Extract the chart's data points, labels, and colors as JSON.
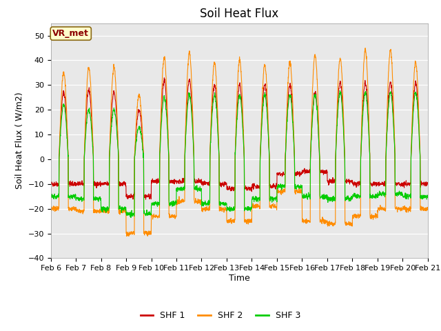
{
  "title": "Soil Heat Flux",
  "xlabel": "Time",
  "ylabel": "Soil Heat Flux ( W/m2)",
  "ylim": [
    -40,
    55
  ],
  "yticks": [
    -40,
    -30,
    -20,
    -10,
    0,
    10,
    20,
    30,
    40,
    50
  ],
  "x_labels": [
    "Feb 6",
    "Feb 7",
    "Feb 8",
    "Feb 9",
    "Feb 10",
    "Feb 11",
    "Feb 12",
    "Feb 13",
    "Feb 14",
    "Feb 15",
    "Feb 16",
    "Feb 17",
    "Feb 18",
    "Feb 19",
    "Feb 20",
    "Feb 21"
  ],
  "shf1_color": "#cc0000",
  "shf2_color": "#ff8c00",
  "shf3_color": "#00cc00",
  "bg_color": "#e8e8e8",
  "annotation_text": "VR_met",
  "annotation_bg": "#ffffcc",
  "annotation_border": "#8B6914",
  "annotation_text_color": "#8B0000",
  "legend_labels": [
    "SHF 1",
    "SHF 2",
    "SHF 3"
  ],
  "n_days": 15,
  "points_per_day": 144,
  "title_fontsize": 12,
  "axis_fontsize": 9,
  "tick_fontsize": 8,
  "legend_fontsize": 9
}
